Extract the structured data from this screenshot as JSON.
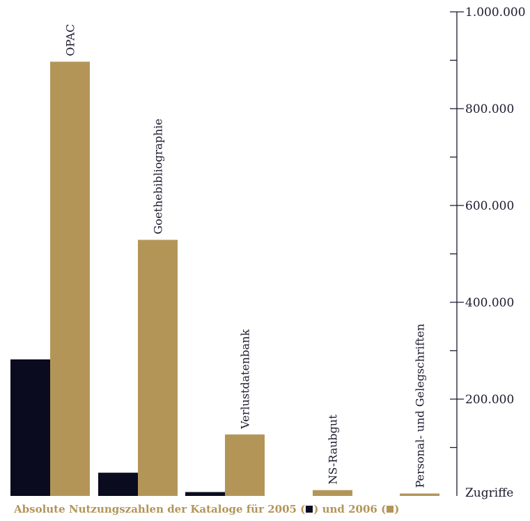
{
  "chart_data": {
    "type": "bar",
    "categories": [
      "OPAC",
      "Goethebibliographie",
      "Verlustdatenbank",
      "NS-Raubgut",
      "Personal- und Gelegschriften"
    ],
    "series": [
      {
        "name": "2005",
        "color": "#0b0b1f",
        "values": [
          282000,
          48000,
          8000,
          0,
          0
        ]
      },
      {
        "name": "2006",
        "color": "#b39558",
        "values": [
          897000,
          529000,
          127000,
          12000,
          5000
        ]
      }
    ],
    "ylim": [
      0,
      1000000
    ],
    "yticks_labeled": [
      200000,
      400000,
      600000,
      800000,
      1000000
    ],
    "ytick_labels": [
      "200.000",
      "400.000",
      "600.000",
      "800.000",
      "1.000.000"
    ],
    "yticks_minor": [
      100000,
      300000,
      500000,
      700000,
      900000
    ],
    "ylabel": "Zugriffe",
    "axis_position": "right",
    "grid": false
  },
  "caption": {
    "prefix": "Absolute Nutzungszahlen der Kataloge für 2005 (",
    "middle": ") und 2006 (",
    "suffix": ")"
  }
}
